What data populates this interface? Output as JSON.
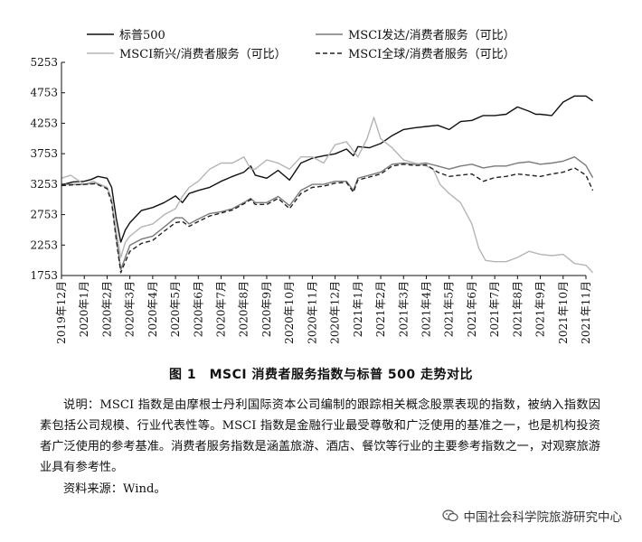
{
  "chart_data": {
    "type": "line",
    "x": [
      "2019年12月",
      "2020年1月",
      "2020年2月",
      "2020年3月",
      "2020年4月",
      "2020年5月",
      "2020年6月",
      "2020年7月",
      "2020年8月",
      "2020年9月",
      "2020年10月",
      "2020年11月",
      "2020年12月",
      "2021年1月",
      "2021年2月",
      "2021年3月",
      "2021年4月",
      "2021年5月",
      "2021年6月",
      "2021年7月",
      "2021年8月",
      "2021年9月",
      "2021年10月",
      "2021年11月"
    ],
    "ylim": [
      1753,
      5253
    ],
    "yticks": [
      1753,
      2253,
      2753,
      3253,
      3753,
      4253,
      4753,
      5253
    ],
    "grid": false,
    "legend_position": "top",
    "series": [
      {
        "name": "标普500",
        "style": "solid",
        "color": "#111111",
        "points": [
          [
            0,
            3240
          ],
          [
            0.5,
            3290
          ],
          [
            1.0,
            3300
          ],
          [
            1.3,
            3330
          ],
          [
            1.6,
            3380
          ],
          [
            2.0,
            3350
          ],
          [
            2.2,
            3200
          ],
          [
            2.4,
            2700
          ],
          [
            2.6,
            2300
          ],
          [
            2.8,
            2500
          ],
          [
            3.0,
            2620
          ],
          [
            3.5,
            2820
          ],
          [
            4.0,
            2870
          ],
          [
            4.5,
            2950
          ],
          [
            5.0,
            3060
          ],
          [
            5.3,
            2950
          ],
          [
            5.6,
            3100
          ],
          [
            6.0,
            3150
          ],
          [
            6.5,
            3200
          ],
          [
            7.0,
            3300
          ],
          [
            7.5,
            3380
          ],
          [
            8.0,
            3450
          ],
          [
            8.3,
            3550
          ],
          [
            8.5,
            3400
          ],
          [
            9.0,
            3350
          ],
          [
            9.5,
            3480
          ],
          [
            10.0,
            3320
          ],
          [
            10.5,
            3600
          ],
          [
            11.0,
            3680
          ],
          [
            11.5,
            3720
          ],
          [
            12.0,
            3750
          ],
          [
            12.5,
            3830
          ],
          [
            12.8,
            3720
          ],
          [
            13.0,
            3870
          ],
          [
            13.5,
            3850
          ],
          [
            14.0,
            3920
          ],
          [
            14.5,
            4050
          ],
          [
            15.0,
            4150
          ],
          [
            15.5,
            4180
          ],
          [
            16.0,
            4200
          ],
          [
            16.5,
            4220
          ],
          [
            17.0,
            4150
          ],
          [
            17.5,
            4280
          ],
          [
            18.0,
            4300
          ],
          [
            18.5,
            4380
          ],
          [
            19.0,
            4380
          ],
          [
            19.5,
            4400
          ],
          [
            20.0,
            4520
          ],
          [
            20.5,
            4450
          ],
          [
            20.8,
            4400
          ],
          [
            21.0,
            4400
          ],
          [
            21.5,
            4380
          ],
          [
            22.0,
            4600
          ],
          [
            22.5,
            4700
          ],
          [
            23.0,
            4700
          ],
          [
            23.3,
            4620
          ]
        ]
      },
      {
        "name": "MSCI发达/消费者服务（可比）",
        "style": "solid",
        "color": "#7a7a7a",
        "points": [
          [
            0,
            3250
          ],
          [
            0.5,
            3250
          ],
          [
            1.0,
            3250
          ],
          [
            1.5,
            3270
          ],
          [
            2.0,
            3200
          ],
          [
            2.2,
            3000
          ],
          [
            2.4,
            2400
          ],
          [
            2.6,
            1850
          ],
          [
            2.8,
            2050
          ],
          [
            3.0,
            2250
          ],
          [
            3.5,
            2350
          ],
          [
            4.0,
            2400
          ],
          [
            4.5,
            2550
          ],
          [
            5.0,
            2700
          ],
          [
            5.3,
            2700
          ],
          [
            5.6,
            2600
          ],
          [
            6.0,
            2680
          ],
          [
            6.5,
            2770
          ],
          [
            7.0,
            2800
          ],
          [
            7.5,
            2850
          ],
          [
            8.0,
            2950
          ],
          [
            8.3,
            3020
          ],
          [
            8.5,
            2950
          ],
          [
            9.0,
            2950
          ],
          [
            9.5,
            3050
          ],
          [
            10.0,
            2900
          ],
          [
            10.5,
            3150
          ],
          [
            11.0,
            3250
          ],
          [
            11.5,
            3250
          ],
          [
            12.0,
            3300
          ],
          [
            12.5,
            3300
          ],
          [
            12.8,
            3150
          ],
          [
            13.0,
            3350
          ],
          [
            13.5,
            3400
          ],
          [
            14.0,
            3450
          ],
          [
            14.5,
            3580
          ],
          [
            15.0,
            3600
          ],
          [
            15.5,
            3580
          ],
          [
            16.0,
            3600
          ],
          [
            16.5,
            3550
          ],
          [
            17.0,
            3500
          ],
          [
            17.5,
            3550
          ],
          [
            18.0,
            3580
          ],
          [
            18.5,
            3520
          ],
          [
            19.0,
            3550
          ],
          [
            19.5,
            3550
          ],
          [
            20.0,
            3600
          ],
          [
            20.5,
            3620
          ],
          [
            21.0,
            3580
          ],
          [
            21.5,
            3600
          ],
          [
            22.0,
            3630
          ],
          [
            22.5,
            3700
          ],
          [
            23.0,
            3560
          ],
          [
            23.3,
            3360
          ]
        ]
      },
      {
        "name": "MSCI新兴/消费者服务（可比）",
        "style": "solid",
        "color": "#b5b5b5",
        "points": [
          [
            0,
            3350
          ],
          [
            0.4,
            3400
          ],
          [
            0.8,
            3300
          ],
          [
            1.0,
            3250
          ],
          [
            1.4,
            3300
          ],
          [
            2.0,
            3200
          ],
          [
            2.2,
            3000
          ],
          [
            2.4,
            2500
          ],
          [
            2.6,
            2050
          ],
          [
            2.8,
            2300
          ],
          [
            3.0,
            2400
          ],
          [
            3.5,
            2550
          ],
          [
            4.0,
            2600
          ],
          [
            4.5,
            2750
          ],
          [
            5.0,
            2850
          ],
          [
            5.3,
            3050
          ],
          [
            5.6,
            3200
          ],
          [
            6.0,
            3300
          ],
          [
            6.5,
            3500
          ],
          [
            7.0,
            3600
          ],
          [
            7.5,
            3600
          ],
          [
            8.0,
            3700
          ],
          [
            8.3,
            3500
          ],
          [
            8.5,
            3500
          ],
          [
            9.0,
            3650
          ],
          [
            9.5,
            3600
          ],
          [
            10.0,
            3500
          ],
          [
            10.5,
            3700
          ],
          [
            11.0,
            3700
          ],
          [
            11.5,
            3600
          ],
          [
            12.0,
            3900
          ],
          [
            12.5,
            3950
          ],
          [
            13.0,
            3700
          ],
          [
            13.4,
            4000
          ],
          [
            13.7,
            4350
          ],
          [
            14.0,
            4000
          ],
          [
            14.5,
            3850
          ],
          [
            15.0,
            3650
          ],
          [
            15.5,
            3600
          ],
          [
            16.0,
            3550
          ],
          [
            16.3,
            3500
          ],
          [
            16.6,
            3250
          ],
          [
            17.0,
            3100
          ],
          [
            17.5,
            2950
          ],
          [
            18.0,
            2600
          ],
          [
            18.3,
            2200
          ],
          [
            18.6,
            2000
          ],
          [
            19.0,
            1980
          ],
          [
            19.5,
            1980
          ],
          [
            20.0,
            2050
          ],
          [
            20.5,
            2150
          ],
          [
            21.0,
            2100
          ],
          [
            21.5,
            2080
          ],
          [
            22.0,
            2100
          ],
          [
            22.5,
            1950
          ],
          [
            23.0,
            1920
          ],
          [
            23.3,
            1800
          ]
        ]
      },
      {
        "name": "MSCI全球/消费者服务（可比）",
        "style": "dashed",
        "color": "#222222",
        "points": [
          [
            0,
            3230
          ],
          [
            0.5,
            3240
          ],
          [
            1.0,
            3250
          ],
          [
            1.5,
            3260
          ],
          [
            2.0,
            3180
          ],
          [
            2.2,
            2950
          ],
          [
            2.4,
            2350
          ],
          [
            2.6,
            1800
          ],
          [
            2.8,
            1980
          ],
          [
            3.0,
            2150
          ],
          [
            3.5,
            2280
          ],
          [
            4.0,
            2330
          ],
          [
            4.5,
            2480
          ],
          [
            5.0,
            2620
          ],
          [
            5.3,
            2640
          ],
          [
            5.6,
            2560
          ],
          [
            6.0,
            2640
          ],
          [
            6.5,
            2730
          ],
          [
            7.0,
            2780
          ],
          [
            7.5,
            2830
          ],
          [
            8.0,
            2930
          ],
          [
            8.3,
            3000
          ],
          [
            8.5,
            2920
          ],
          [
            9.0,
            2920
          ],
          [
            9.5,
            3020
          ],
          [
            10.0,
            2850
          ],
          [
            10.5,
            3100
          ],
          [
            11.0,
            3200
          ],
          [
            11.5,
            3220
          ],
          [
            12.0,
            3270
          ],
          [
            12.5,
            3280
          ],
          [
            12.8,
            3120
          ],
          [
            13.0,
            3320
          ],
          [
            13.5,
            3370
          ],
          [
            14.0,
            3420
          ],
          [
            14.5,
            3550
          ],
          [
            15.0,
            3580
          ],
          [
            15.5,
            3560
          ],
          [
            16.0,
            3570
          ],
          [
            16.5,
            3450
          ],
          [
            17.0,
            3380
          ],
          [
            17.5,
            3400
          ],
          [
            18.0,
            3420
          ],
          [
            18.5,
            3300
          ],
          [
            19.0,
            3360
          ],
          [
            19.5,
            3380
          ],
          [
            20.0,
            3420
          ],
          [
            20.5,
            3400
          ],
          [
            21.0,
            3380
          ],
          [
            21.5,
            3420
          ],
          [
            22.0,
            3450
          ],
          [
            22.5,
            3520
          ],
          [
            23.0,
            3400
          ],
          [
            23.3,
            3150
          ]
        ]
      }
    ]
  },
  "caption": "图 1　MSCI 消费者服务指数与标普 500 走势对比",
  "note_line1": "说明：MSCI 指数是由摩根士丹利国际资本公司编制的跟踪相关概念股票表现的指数，被纳入指数因素包括公司规模、行业代表性等。MSCI 指数是金融行业最受尊敬和广泛使用的基准之一，也是机构投资者广泛使用的参考基准。消费者服务指数是涵盖旅游、酒店、餐饮等行业的主要参考指数之一，对观察旅游业具有参考性。",
  "source": "资料来源：Wind。",
  "watermark": "中国社会科学院旅游研究中心",
  "watermark_icon": "wechat-icon"
}
